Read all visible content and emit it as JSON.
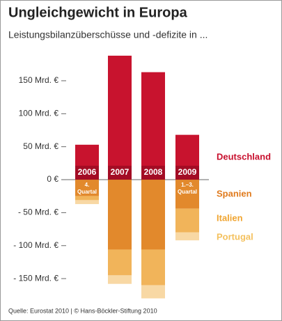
{
  "chart_data": {
    "type": "bar",
    "title": "Ungleichgewicht in Europa",
    "subtitle": "Leistungsbilanzüberschüsse und -defizite in ...",
    "source": "Quelle: Eurostat 2010 | © Hans-Böckler-Stiftung 2010",
    "categories": [
      "2006",
      "2007",
      "2008",
      "2009"
    ],
    "category_notes": [
      [
        "4.",
        "Quartal"
      ],
      null,
      null,
      [
        "1.–3.",
        "Quartal"
      ]
    ],
    "stacked": true,
    "series": [
      {
        "name": "Deutschland",
        "color": "#c8132e",
        "values": [
          53,
          188,
          163,
          68
        ]
      },
      {
        "name": "Spanien",
        "color": "#e2892c",
        "values": [
          -25,
          -106,
          -106,
          -44
        ]
      },
      {
        "name": "Italien",
        "color": "#f1b45a",
        "values": [
          -6,
          -39,
          -54,
          -36
        ]
      },
      {
        "name": "Portugal",
        "color": "#f8d8a4",
        "values": [
          -6,
          -13,
          -20,
          -12
        ]
      }
    ],
    "ylim": [
      -190,
      200
    ],
    "yticks": [
      {
        "value": 150,
        "label": "150 Mrd. €"
      },
      {
        "value": 100,
        "label": "100 Mrd. €"
      },
      {
        "value": 50,
        "label": "50 Mrd. €"
      },
      {
        "value": 0,
        "label": "0 €"
      },
      {
        "value": -50,
        "label": "- 50 Mrd. €"
      },
      {
        "value": -100,
        "label": "- 100 Mrd. €"
      },
      {
        "value": -150,
        "label": "- 150 Mrd. €"
      }
    ],
    "legend_colors": [
      "#c8102e",
      "#e07b1e",
      "#f0a531",
      "#f4c15e"
    ]
  }
}
